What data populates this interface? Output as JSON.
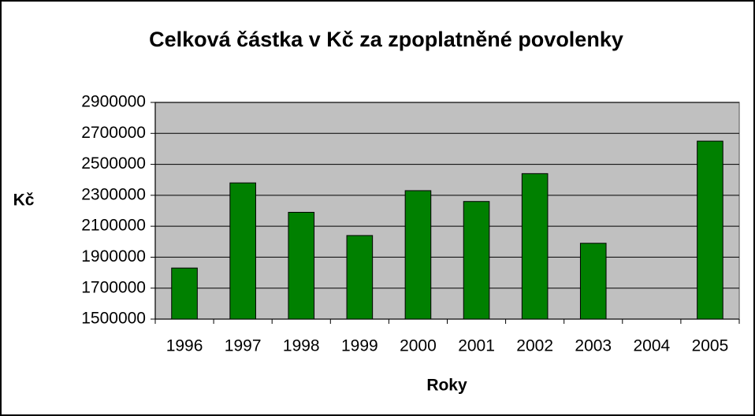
{
  "chart_data": {
    "type": "bar",
    "title": "Celková částka v Kč za zpoplatněné povolenky",
    "x_label": "Roky",
    "y_label": "Kč",
    "categories": [
      "1996",
      "1997",
      "1998",
      "1999",
      "2000",
      "2001",
      "2002",
      "2003",
      "2004",
      "2005"
    ],
    "values": [
      1830000,
      2380000,
      2190000,
      2040000,
      2330000,
      2260000,
      2440000,
      1990000,
      null,
      2650000
    ],
    "color": "#008000",
    "ylim": [
      1500000,
      2900000
    ],
    "yticks": [
      1500000,
      1700000,
      1900000,
      2100000,
      2300000,
      2500000,
      2700000,
      2900000
    ],
    "grid": true
  }
}
